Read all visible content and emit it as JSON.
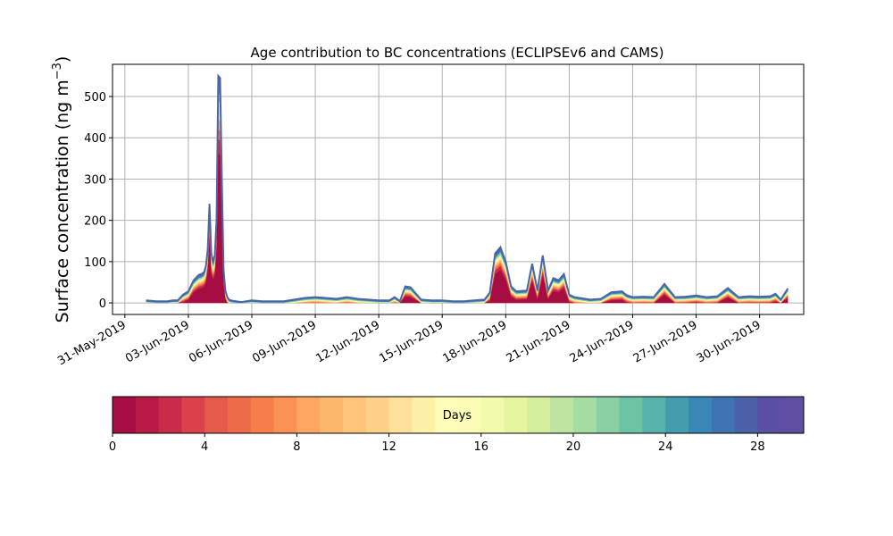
{
  "chart_data": {
    "type": "area",
    "title": "Age contribution to BC concentrations (ECLIPSEv6 and CAMS)",
    "ylabel_main": "Surface concentration (ng m",
    "ylabel_sup": "−3",
    "ylabel_close": ")",
    "ylim": [
      -28,
      578
    ],
    "yticks": [
      0,
      100,
      200,
      300,
      400,
      500
    ],
    "xlim": [
      "2019-05-30T10:00",
      "2019-07-02T02:00"
    ],
    "xticks": [
      {
        "date": "2019-05-31",
        "label": "31-May-2019"
      },
      {
        "date": "2019-06-03",
        "label": "03-Jun-2019"
      },
      {
        "date": "2019-06-06",
        "label": "06-Jun-2019"
      },
      {
        "date": "2019-06-09",
        "label": "09-Jun-2019"
      },
      {
        "date": "2019-06-12",
        "label": "12-Jun-2019"
      },
      {
        "date": "2019-06-15",
        "label": "15-Jun-2019"
      },
      {
        "date": "2019-06-18",
        "label": "18-Jun-2019"
      },
      {
        "date": "2019-06-21",
        "label": "21-Jun-2019"
      },
      {
        "date": "2019-06-24",
        "label": "24-Jun-2019"
      },
      {
        "date": "2019-06-27",
        "label": "27-Jun-2019"
      },
      {
        "date": "2019-06-30",
        "label": "30-Jun-2019"
      }
    ],
    "grid": true,
    "total_series": {
      "x": [
        "2019-06-01T00:00",
        "2019-06-01T12:00",
        "2019-06-02T00:00",
        "2019-06-02T06:00",
        "2019-06-02T12:00",
        "2019-06-02T18:00",
        "2019-06-03T00:00",
        "2019-06-03T06:00",
        "2019-06-03T12:00",
        "2019-06-03T15:00",
        "2019-06-03T18:00",
        "2019-06-03T20:00",
        "2019-06-03T22:00",
        "2019-06-04T00:00",
        "2019-06-04T02:00",
        "2019-06-04T04:00",
        "2019-06-04T06:00",
        "2019-06-04T08:00",
        "2019-06-04T10:00",
        "2019-06-04T12:00",
        "2019-06-04T14:00",
        "2019-06-04T16:00",
        "2019-06-04T18:00",
        "2019-06-04T20:00",
        "2019-06-04T22:00",
        "2019-06-05T00:00",
        "2019-06-05T06:00",
        "2019-06-05T12:00",
        "2019-06-06T00:00",
        "2019-06-06T12:00",
        "2019-06-07T00:00",
        "2019-06-07T12:00",
        "2019-06-08T00:00",
        "2019-06-08T12:00",
        "2019-06-09T00:00",
        "2019-06-09T12:00",
        "2019-06-10T00:00",
        "2019-06-10T12:00",
        "2019-06-11T00:00",
        "2019-06-11T12:00",
        "2019-06-12T00:00",
        "2019-06-12T12:00",
        "2019-06-12T18:00",
        "2019-06-13T00:00",
        "2019-06-13T06:00",
        "2019-06-13T12:00",
        "2019-06-14T00:00",
        "2019-06-14T12:00",
        "2019-06-15T00:00",
        "2019-06-15T12:00",
        "2019-06-16T00:00",
        "2019-06-16T12:00",
        "2019-06-17T00:00",
        "2019-06-17T06:00",
        "2019-06-17T12:00",
        "2019-06-17T18:00",
        "2019-06-18T00:00",
        "2019-06-18T06:00",
        "2019-06-18T12:00",
        "2019-06-19T00:00",
        "2019-06-19T06:00",
        "2019-06-19T12:00",
        "2019-06-19T18:00",
        "2019-06-20T00:00",
        "2019-06-20T06:00",
        "2019-06-20T12:00",
        "2019-06-20T18:00",
        "2019-06-21T00:00",
        "2019-06-21T06:00",
        "2019-06-21T12:00",
        "2019-06-22T00:00",
        "2019-06-22T12:00",
        "2019-06-23T00:00",
        "2019-06-23T12:00",
        "2019-06-23T15:00",
        "2019-06-23T18:00",
        "2019-06-24T00:00",
        "2019-06-24T12:00",
        "2019-06-25T00:00",
        "2019-06-25T12:00",
        "2019-06-26T00:00",
        "2019-06-26T12:00",
        "2019-06-27T00:00",
        "2019-06-27T12:00",
        "2019-06-28T00:00",
        "2019-06-28T12:00",
        "2019-06-29T00:00",
        "2019-06-29T12:00",
        "2019-06-30T00:00",
        "2019-06-30T12:00",
        "2019-06-30T18:00",
        "2019-07-01T00:00",
        "2019-07-01T08:00"
      ],
      "y": [
        6,
        4,
        4,
        6,
        6,
        20,
        28,
        55,
        68,
        70,
        75,
        90,
        130,
        240,
        120,
        100,
        115,
        200,
        550,
        545,
        300,
        80,
        30,
        15,
        8,
        6,
        4,
        2,
        6,
        4,
        4,
        4,
        8,
        12,
        14,
        12,
        10,
        14,
        10,
        8,
        6,
        6,
        14,
        4,
        40,
        38,
        8,
        6,
        6,
        4,
        4,
        6,
        8,
        25,
        120,
        135,
        100,
        40,
        28,
        30,
        95,
        30,
        115,
        30,
        60,
        55,
        70,
        20,
        14,
        12,
        8,
        10,
        26,
        28,
        22,
        18,
        14,
        15,
        14,
        46,
        14,
        15,
        18,
        14,
        16,
        36,
        14,
        16,
        15,
        16,
        22,
        8,
        35
      ]
    },
    "colorbar": {
      "label": "Days",
      "range": [
        0,
        30
      ],
      "ticks": [
        0,
        4,
        8,
        12,
        16,
        20,
        24,
        28
      ],
      "colors": [
        "#a50d43",
        "#b71b45",
        "#ca2b48",
        "#d9414d",
        "#e45b4c",
        "#ee6b48",
        "#f57e4a",
        "#fa9255",
        "#fda761",
        "#fdb86d",
        "#fec47a",
        "#fed18b",
        "#fee09a",
        "#fff0a8",
        "#fffbb9",
        "#fbfdb6",
        "#f2faab",
        "#e5f5a0",
        "#d3ee9c",
        "#bde5a1",
        "#a4dca3",
        "#89d0a4",
        "#6cc4a5",
        "#57b2ac",
        "#449dae",
        "#3a88b6",
        "#3d74b1",
        "#4a61a7",
        "#5a4fa3",
        "#5e4fa2"
      ]
    }
  }
}
